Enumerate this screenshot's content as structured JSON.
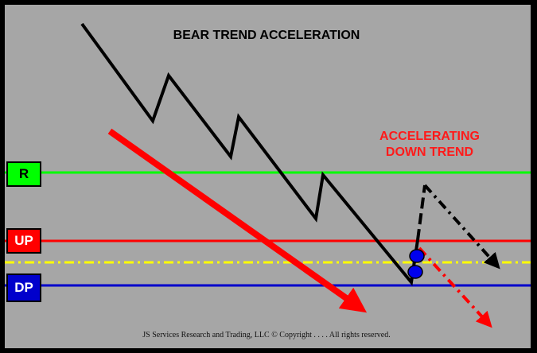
{
  "title": "BEAR TREND ACCELERATION",
  "annotation": {
    "line1": "ACCELERATING",
    "line2": "DOWN TREND",
    "color": "#ff1a1a"
  },
  "levels": {
    "r": {
      "label": "R",
      "color": "#00ff00",
      "text_color": "#000000"
    },
    "up": {
      "label": "UP",
      "color": "#ff0000",
      "text_color": "#ffffff"
    },
    "dp": {
      "label": "DP",
      "color": "#0000cc",
      "text_color": "#ffffff"
    },
    "mid_dashdot": {
      "color": "#ffff00"
    }
  },
  "colors": {
    "background": "#a6a6a6",
    "frame": "#000000",
    "price_path": "#000000"
  },
  "footer": "JS Services Research  and Trading, LLC © Copyright  . . . . All rights reserved."
}
